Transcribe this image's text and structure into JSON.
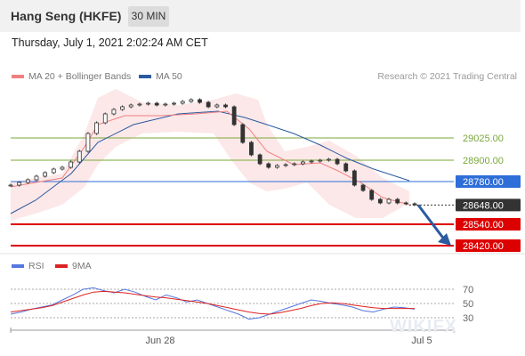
{
  "header": {
    "title": "Hang Seng (HKFE)",
    "timeframe": "30 MIN"
  },
  "timestamp": "Thursday, July 1, 2021 2:02:24 AM CET",
  "credit": "Research © 2021 Trading Central",
  "legend": [
    {
      "label": "MA 20 + Bollinger Bands",
      "color": "#f08080"
    },
    {
      "label": "MA 50",
      "color": "#2c5aa0"
    }
  ],
  "rsi_legend": [
    {
      "label": "RSI",
      "color": "#5577dd"
    },
    {
      "label": "9MA",
      "color": "#dd2222"
    }
  ],
  "watermark": "WIKIFX",
  "chart_data": [
    {
      "type": "candlestick",
      "title": "Hang Seng (HKFE)",
      "price_levels": [
        {
          "value": 29025.0,
          "label": "29025.00",
          "kind": "resistance",
          "color": "#7aa83a"
        },
        {
          "value": 28900.0,
          "label": "28900.00",
          "kind": "resistance",
          "color": "#7aa83a"
        },
        {
          "value": 28780.0,
          "label": "28780.00",
          "kind": "pivot",
          "color": "#2e6ed8"
        },
        {
          "value": 28648.0,
          "label": "28648.00",
          "kind": "last",
          "color": "#333333"
        },
        {
          "value": 28540.0,
          "label": "28540.00",
          "kind": "support",
          "color": "#dd0000"
        },
        {
          "value": 28420.0,
          "label": "28420.00",
          "kind": "support",
          "color": "#dd0000"
        }
      ],
      "x_tick_labels": [
        "Jun 28",
        "Jul 5"
      ],
      "close_path": [
        28760,
        28775,
        28790,
        28810,
        28830,
        28850,
        28860,
        28890,
        28950,
        29050,
        29110,
        29160,
        29185,
        29200,
        29210,
        29215,
        29220,
        29210,
        29215,
        29220,
        29230,
        29240,
        29225,
        29200,
        29210,
        29200,
        29100,
        29000,
        28930,
        28880,
        28860,
        28870,
        28875,
        28880,
        28890,
        28895,
        28900,
        28905,
        28880,
        28840,
        28760,
        28730,
        28680,
        28660,
        28680,
        28660,
        28655,
        28650
      ]
    },
    {
      "type": "line",
      "title": "RSI",
      "series": [
        {
          "name": "RSI"
        },
        {
          "name": "9MA"
        }
      ],
      "ylevels": [
        70,
        50,
        30
      ],
      "rsi_values": [
        35,
        38,
        42,
        45,
        48,
        55,
        62,
        70,
        72,
        68,
        65,
        70,
        66,
        60,
        55,
        62,
        58,
        52,
        55,
        50,
        45,
        40,
        35,
        28,
        30,
        35,
        40,
        45,
        50,
        55,
        53,
        50,
        48,
        45,
        40,
        38,
        42,
        45,
        44,
        42
      ],
      "ma9_values": [
        38,
        40,
        42,
        44,
        47,
        52,
        57,
        62,
        66,
        67,
        66,
        65,
        63,
        61,
        59,
        58,
        56,
        54,
        52,
        50,
        47,
        44,
        41,
        38,
        36,
        35,
        37,
        40,
        43,
        47,
        50,
        51,
        50,
        48,
        46,
        44,
        43,
        43,
        43,
        43
      ]
    }
  ]
}
